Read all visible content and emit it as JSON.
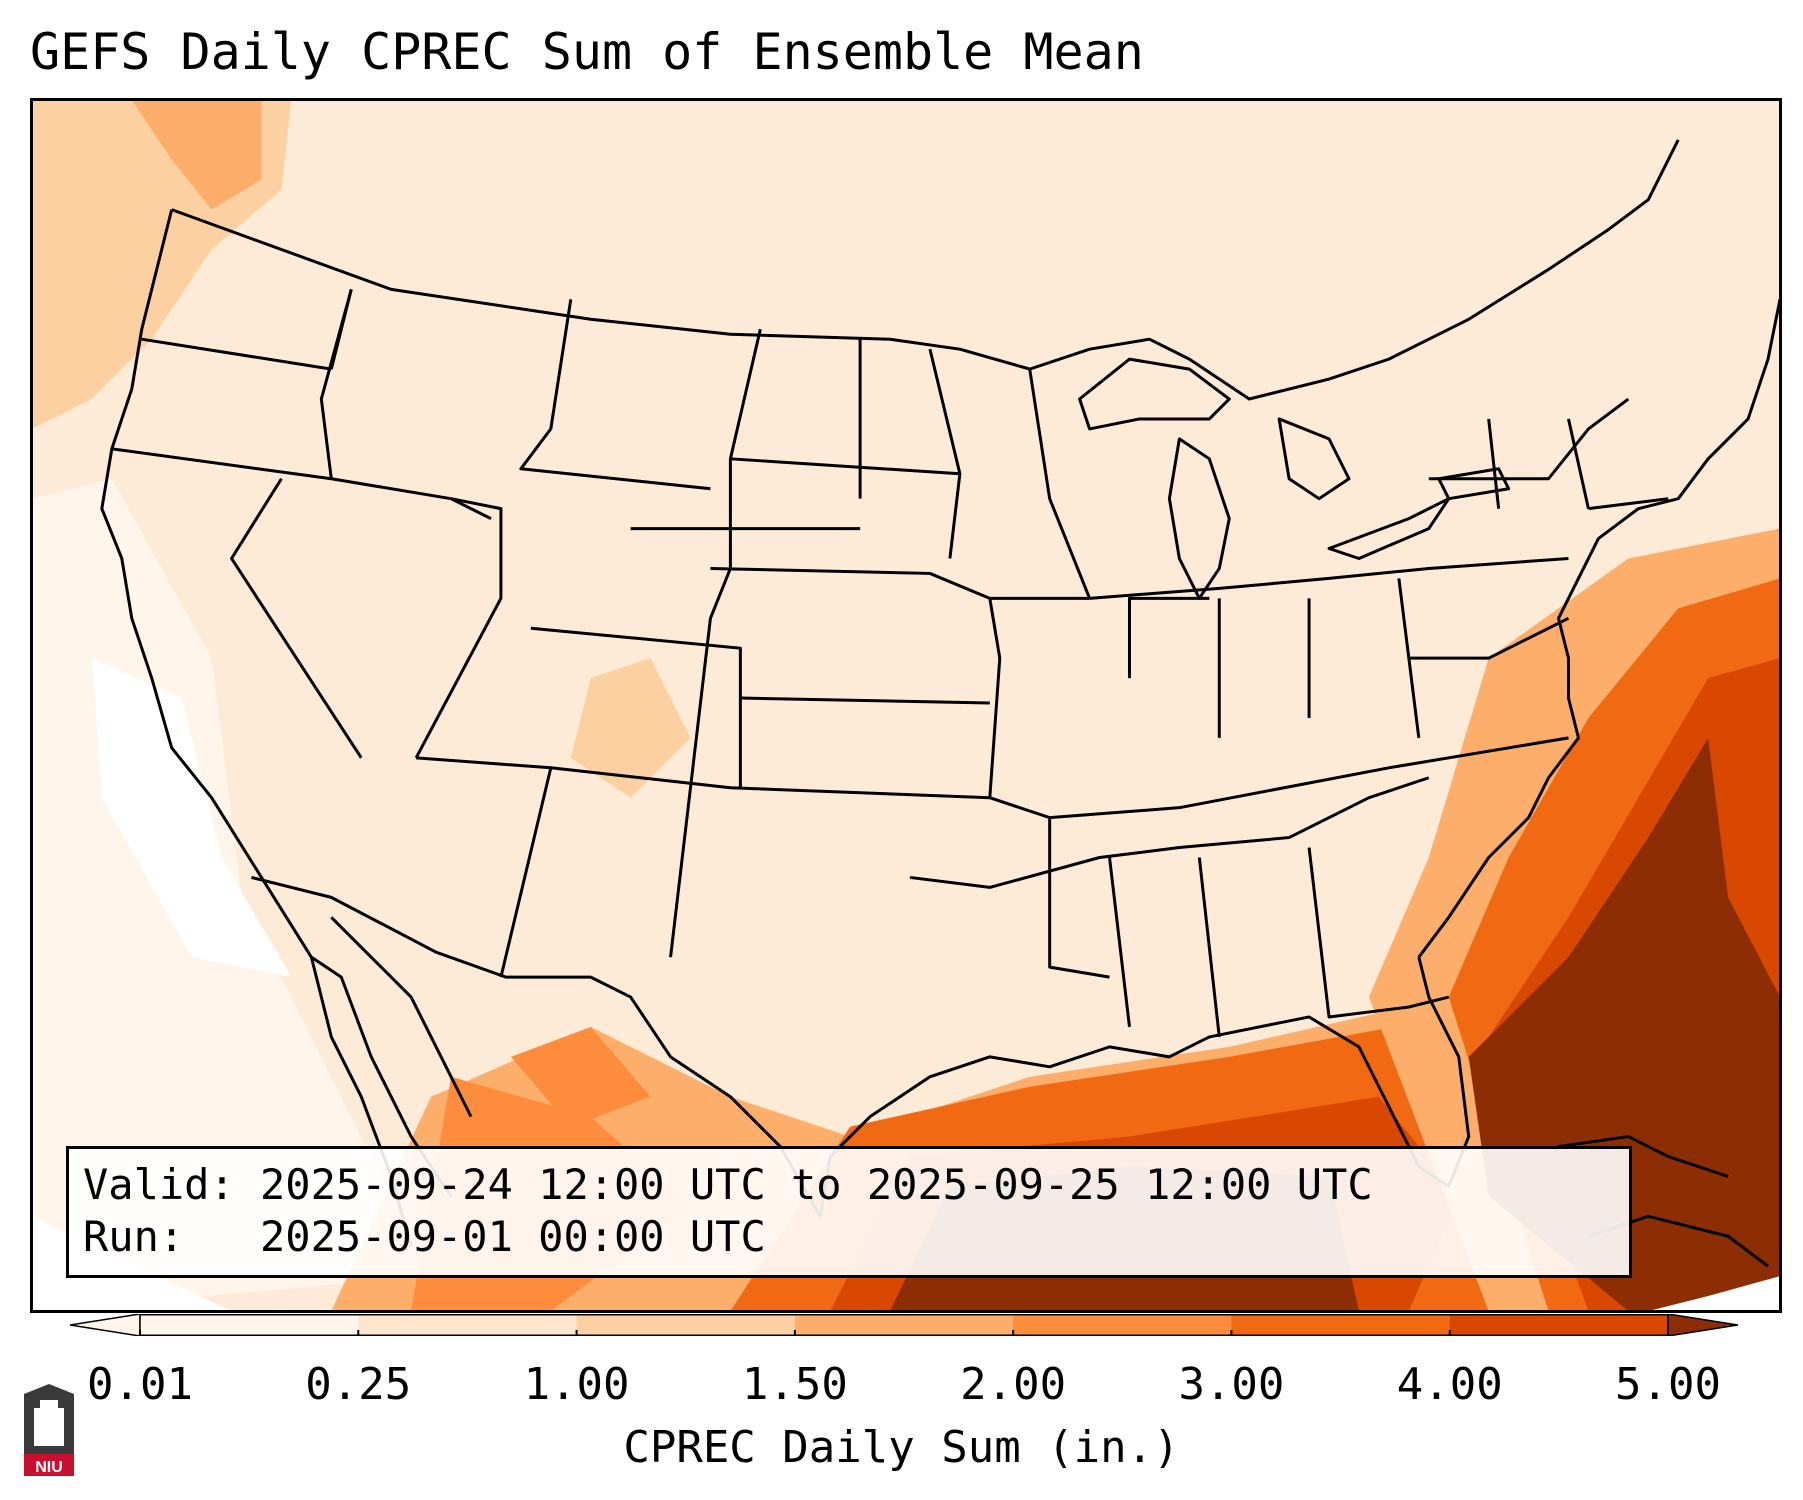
{
  "title": "GEFS Daily CPREC Sum of Ensemble Mean",
  "info": {
    "valid_label": "Valid:",
    "valid_value": "2025-09-24 12:00 UTC to 2025-09-25 12:00 UTC",
    "run_label": "Run:",
    "run_value": "2025-09-01 00:00 UTC"
  },
  "colorbar": {
    "label": "CPREC Daily Sum (in.)",
    "ticks": [
      "0.01",
      "0.25",
      "1.00",
      "1.50",
      "2.00",
      "3.00",
      "4.00",
      "5.00"
    ],
    "colors": [
      "#fff5eb",
      "#fee6ce",
      "#fdd0a2",
      "#fdae6b",
      "#fd8d3c",
      "#f16913",
      "#d94801",
      "#8c2d04"
    ],
    "extend": "both"
  },
  "logo": {
    "text": "NIU",
    "color": "#c8102e"
  }
}
